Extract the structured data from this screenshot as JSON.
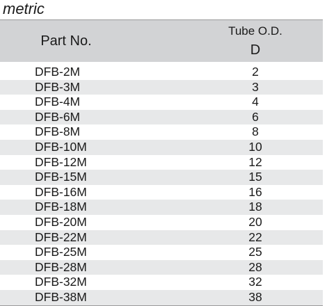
{
  "caption": "metric",
  "table": {
    "headers": {
      "part_no": "Part No.",
      "tube_od": "Tube O.D.",
      "tube_od_symbol": "D"
    },
    "rows": [
      {
        "part": "DFB-2M",
        "od": "2"
      },
      {
        "part": "DFB-3M",
        "od": "3"
      },
      {
        "part": "DFB-4M",
        "od": "4"
      },
      {
        "part": "DFB-6M",
        "od": "6"
      },
      {
        "part": "DFB-8M",
        "od": "8"
      },
      {
        "part": "DFB-10M",
        "od": "10"
      },
      {
        "part": "DFB-12M",
        "od": "12"
      },
      {
        "part": "DFB-15M",
        "od": "15"
      },
      {
        "part": "DFB-16M",
        "od": "16"
      },
      {
        "part": "DFB-18M",
        "od": "18"
      },
      {
        "part": "DFB-20M",
        "od": "20"
      },
      {
        "part": "DFB-22M",
        "od": "22"
      },
      {
        "part": "DFB-25M",
        "od": "25"
      },
      {
        "part": "DFB-28M",
        "od": "28"
      },
      {
        "part": "DFB-32M",
        "od": "32"
      },
      {
        "part": "DFB-38M",
        "od": "38"
      }
    ]
  },
  "colors": {
    "header_bg": "#d2d3d5",
    "row_alt_bg": "#e7e8e9"
  }
}
